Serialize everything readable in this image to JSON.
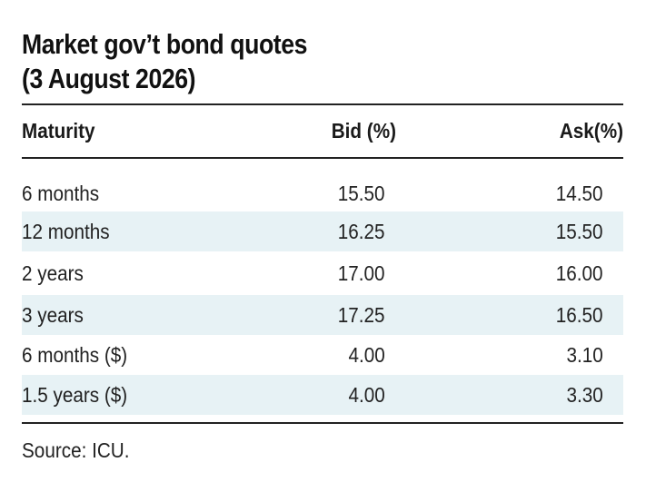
{
  "title": {
    "line1": "Market gov’t bond quotes",
    "line2": "(3 August 2026)"
  },
  "columns": {
    "maturity": "Maturity",
    "bid": "Bid (%)",
    "ask": "Ask(%)"
  },
  "rows": [
    {
      "maturity": "6 months",
      "bid": "15.50",
      "ask": "14.50"
    },
    {
      "maturity": "12 months",
      "bid": "16.25",
      "ask": "15.50"
    },
    {
      "maturity": "2 years",
      "bid": "17.00",
      "ask": "16.00"
    },
    {
      "maturity": "3 years",
      "bid": "17.25",
      "ask": "16.50"
    },
    {
      "maturity": "6 months ($)",
      "bid": "4.00",
      "ask": "3.10"
    },
    {
      "maturity": "1.5 years ($)",
      "bid": "4.00",
      "ask": "3.30"
    }
  ],
  "source": "Source: ICU.",
  "colors": {
    "row_shade": "#e7f2f5",
    "rule": "#222222"
  }
}
